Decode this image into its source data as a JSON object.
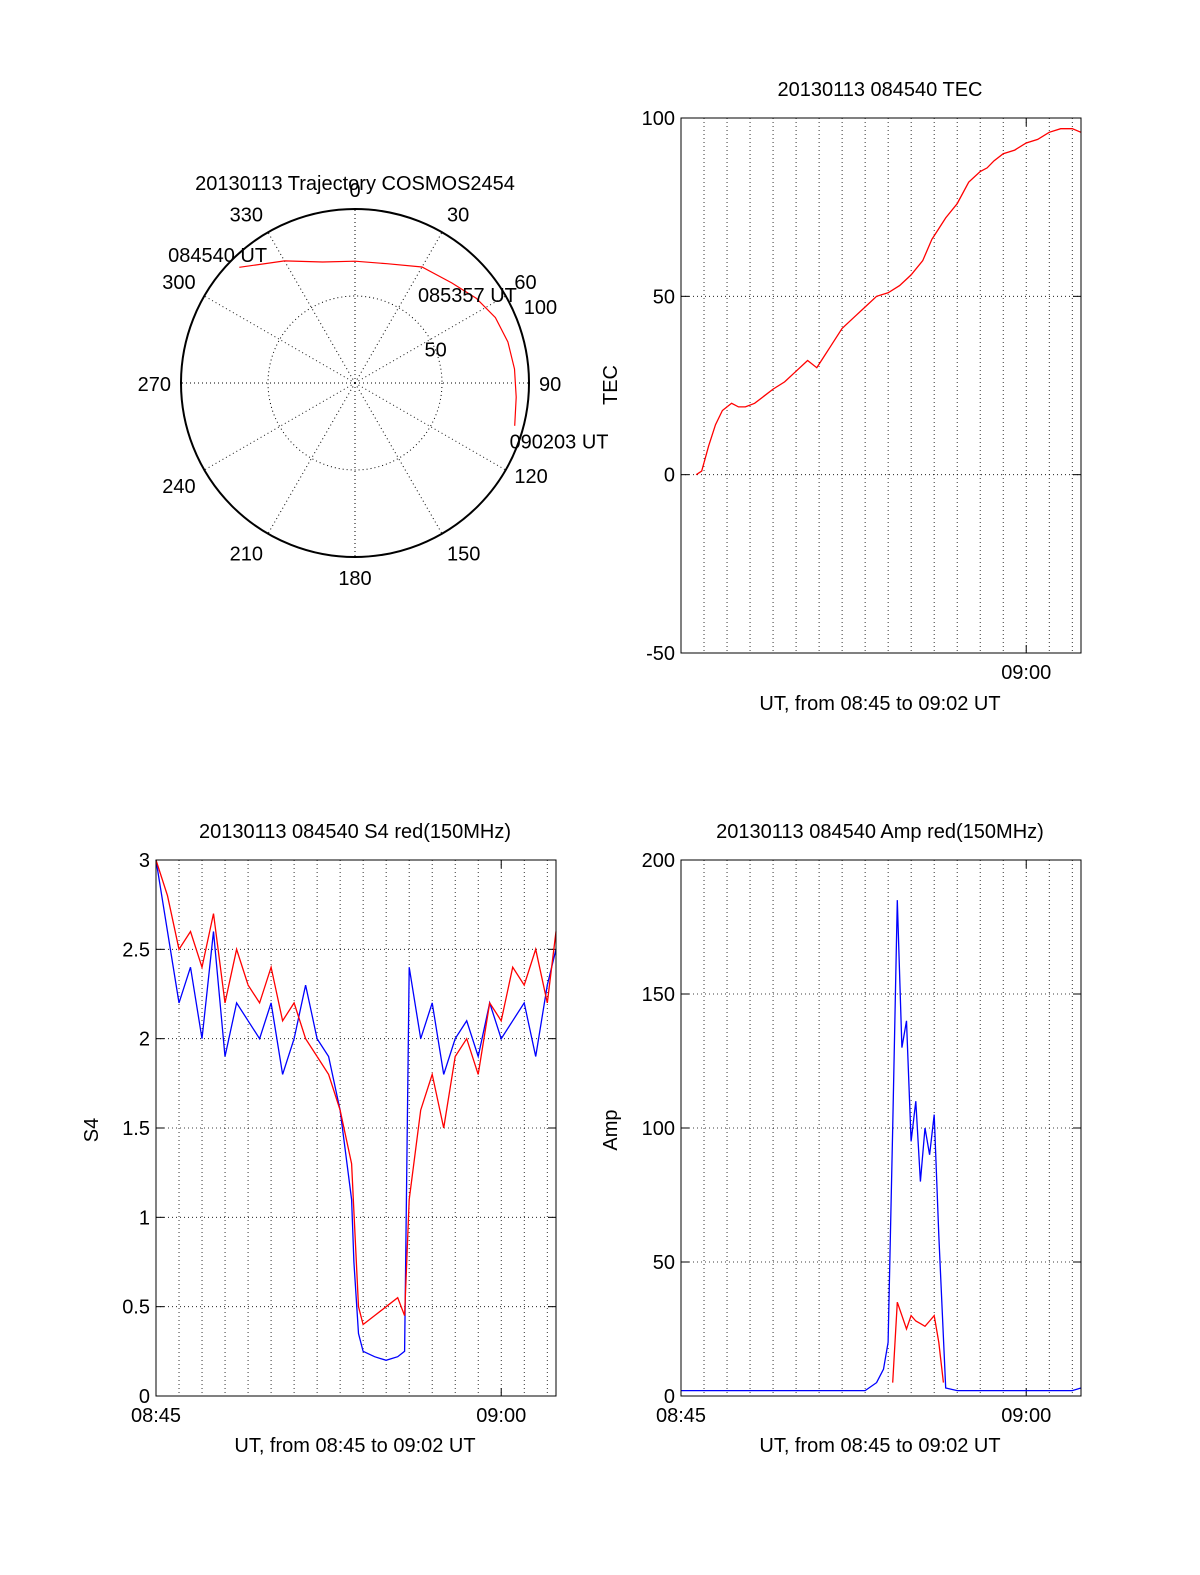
{
  "figure": {
    "colors": {
      "red": "#ff0000",
      "blue": "#0000ff",
      "axis": "#000000",
      "grid": "#000000"
    }
  },
  "chart_data": [
    {
      "id": "trajectory",
      "type": "polar",
      "title": "20130113 Trajectory COSMOS2454",
      "azimuth_labels": [
        "0",
        "30",
        "60",
        "90",
        "120",
        "150",
        "180",
        "210",
        "240",
        "270",
        "300",
        "330"
      ],
      "elevation_labels": [
        "50",
        "100"
      ],
      "r_range": [
        0,
        100
      ],
      "grid": true,
      "track_color": "#ff0000",
      "track": [
        {
          "az": 315,
          "r": 94
        },
        {
          "az": 330,
          "r": 81
        },
        {
          "az": 345,
          "r": 72
        },
        {
          "az": 0,
          "r": 70
        },
        {
          "az": 15,
          "r": 71
        },
        {
          "az": 30,
          "r": 77
        },
        {
          "az": 44,
          "r": 80
        },
        {
          "az": 55,
          "r": 85
        },
        {
          "az": 65,
          "r": 89
        },
        {
          "az": 75,
          "r": 91
        },
        {
          "az": 85,
          "r": 92
        },
        {
          "az": 95,
          "r": 93
        },
        {
          "az": 105,
          "r": 95
        }
      ],
      "time_labels": [
        {
          "text": "084540 UT",
          "az": 313,
          "r": 108
        },
        {
          "text": "085357 UT",
          "az": 52,
          "r": 82
        },
        {
          "text": "090203 UT",
          "az": 106,
          "r": 122
        }
      ]
    },
    {
      "id": "tec",
      "type": "line",
      "title": "20130113 084540 TEC",
      "xlabel": "UT, from 08:45 to 09:02 UT",
      "ylabel": "TEC",
      "xlim": [
        0,
        17.38
      ],
      "ylim": [
        -50,
        100
      ],
      "yticks": [
        -50,
        0,
        50,
        100
      ],
      "xticks": [
        {
          "value": 15,
          "label": "09:00"
        }
      ],
      "grid": true,
      "series": [
        {
          "color": "#ff0000",
          "x": [
            0.66,
            0.9,
            1.2,
            1.5,
            1.8,
            2.2,
            2.5,
            2.8,
            3.2,
            3.6,
            4.0,
            4.5,
            5.0,
            5.5,
            5.9,
            6.2,
            6.5,
            7.0,
            7.5,
            8.0,
            8.5,
            9.0,
            9.5,
            10.0,
            10.5,
            10.9,
            11.2,
            11.5,
            12.0,
            12.5,
            13.0,
            13.3,
            13.6,
            14.0,
            14.5,
            15.0,
            15.5,
            16.0,
            16.5,
            17.0,
            17.38
          ],
          "y": [
            0,
            1,
            8,
            14,
            18,
            20,
            19,
            19,
            20,
            22,
            24,
            26,
            29,
            32,
            30,
            33,
            36,
            41,
            44,
            47,
            50,
            51,
            53,
            56,
            60,
            66,
            69,
            72,
            76,
            82,
            85,
            86,
            88,
            90,
            91,
            93,
            94,
            96,
            97,
            97,
            96
          ]
        }
      ]
    },
    {
      "id": "s4",
      "type": "line",
      "title": "20130113 084540 S4 red(150MHz)",
      "xlabel": "UT, from 08:45 to 09:02 UT",
      "ylabel": "S4",
      "xlim": [
        0,
        17.38
      ],
      "ylim": [
        0,
        3
      ],
      "yticks": [
        0,
        0.5,
        1,
        1.5,
        2,
        2.5,
        3
      ],
      "ytick_labels": [
        "0",
        "0.5",
        "1",
        "1.5",
        "2",
        "2.5",
        "3"
      ],
      "xticks": [
        {
          "value": 0,
          "label": "08:45"
        },
        {
          "value": 15,
          "label": "09:00"
        }
      ],
      "grid": true,
      "series": [
        {
          "color": "#0000ff",
          "x": [
            0,
            0.5,
            1,
            1.5,
            2,
            2.5,
            3,
            3.5,
            4,
            4.5,
            5,
            5.5,
            6,
            6.5,
            7,
            7.5,
            8,
            8.5,
            8.6,
            8.8,
            9,
            9.5,
            10,
            10.5,
            10.8,
            11,
            11.5,
            12,
            12.5,
            13,
            13.5,
            14,
            14.5,
            15,
            15.5,
            16,
            16.5,
            17,
            17.38
          ],
          "y": [
            3,
            2.6,
            2.2,
            2.4,
            2.0,
            2.6,
            1.9,
            2.2,
            2.1,
            2.0,
            2.2,
            1.8,
            2.0,
            2.3,
            2.0,
            1.9,
            1.6,
            1.1,
            0.75,
            0.35,
            0.25,
            0.22,
            0.2,
            0.22,
            0.25,
            2.4,
            2.0,
            2.2,
            1.8,
            2.0,
            2.1,
            1.9,
            2.2,
            2.0,
            2.1,
            2.2,
            1.9,
            2.3,
            2.5
          ]
        },
        {
          "color": "#ff0000",
          "x": [
            0,
            0.5,
            1,
            1.5,
            2,
            2.5,
            3,
            3.5,
            4,
            4.5,
            5,
            5.5,
            6,
            6.5,
            7,
            7.5,
            8,
            8.5,
            8.8,
            9,
            9.5,
            10,
            10.5,
            10.8,
            11,
            11.5,
            12,
            12.5,
            13,
            13.5,
            14,
            14.5,
            15,
            15.5,
            16,
            16.5,
            17,
            17.38
          ],
          "y": [
            3,
            2.8,
            2.5,
            2.6,
            2.4,
            2.7,
            2.2,
            2.5,
            2.3,
            2.2,
            2.4,
            2.1,
            2.2,
            2.0,
            1.9,
            1.8,
            1.6,
            1.3,
            0.5,
            0.4,
            0.45,
            0.5,
            0.55,
            0.45,
            1.1,
            1.6,
            1.8,
            1.5,
            1.9,
            2.0,
            1.8,
            2.2,
            2.1,
            2.4,
            2.3,
            2.5,
            2.2,
            2.6
          ]
        }
      ]
    },
    {
      "id": "amp",
      "type": "line",
      "title": "20130113 084540 Amp red(150MHz)",
      "xlabel": "UT, from 08:45 to 09:02 UT",
      "ylabel": "Amp",
      "xlim": [
        0,
        17.38
      ],
      "ylim": [
        0,
        200
      ],
      "yticks": [
        0,
        50,
        100,
        150,
        200
      ],
      "xticks": [
        {
          "value": 0,
          "label": "08:45"
        },
        {
          "value": 15,
          "label": "09:00"
        }
      ],
      "grid": true,
      "series": [
        {
          "color": "#0000ff",
          "x": [
            0,
            1,
            2,
            3,
            4,
            5,
            6,
            7,
            8,
            8.5,
            8.8,
            9.0,
            9.2,
            9.4,
            9.6,
            9.8,
            10.0,
            10.2,
            10.4,
            10.6,
            10.8,
            11.0,
            11.2,
            11.5,
            12,
            13,
            14,
            15,
            16,
            17,
            17.38
          ],
          "y": [
            2,
            2,
            2,
            2,
            2,
            2,
            2,
            2,
            2,
            5,
            10,
            20,
            100,
            185,
            130,
            140,
            95,
            110,
            80,
            100,
            90,
            105,
            60,
            3,
            2,
            2,
            2,
            2,
            2,
            2,
            3
          ]
        },
        {
          "color": "#ff0000",
          "x": [
            9.2,
            9.4,
            9.6,
            9.8,
            10.0,
            10.2,
            10.4,
            10.6,
            10.8,
            11.0,
            11.2,
            11.4
          ],
          "y": [
            5,
            35,
            30,
            25,
            30,
            28,
            27,
            26,
            28,
            30,
            20,
            5
          ]
        }
      ]
    }
  ]
}
